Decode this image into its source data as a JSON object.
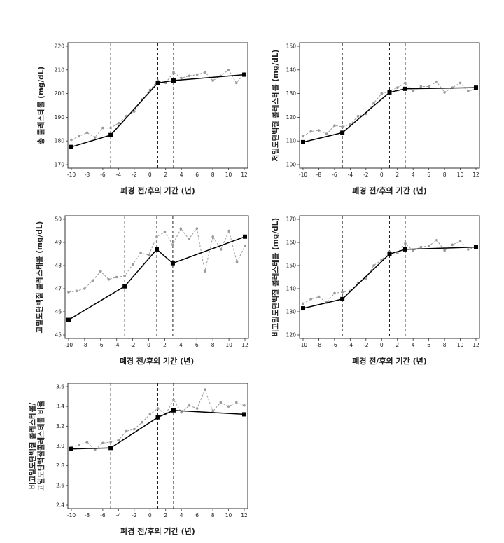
{
  "chart_data": [
    {
      "type": "line",
      "xlabel": "폐경 전/후의 기간 (년)",
      "ylabel": [
        "총 콜레스테롤 (mg/dL)"
      ],
      "xlim": [
        -10,
        12
      ],
      "ylim": [
        170,
        220
      ],
      "xticks": [
        "-10",
        "-8",
        "-6",
        "-4",
        "-2",
        "0",
        "2",
        "4",
        "6",
        "8",
        "10",
        "12"
      ],
      "yticks": [
        "170",
        "180",
        "190",
        "200",
        "210",
        "220"
      ],
      "vlines": [
        -5,
        1,
        3
      ],
      "series": [
        {
          "style": "dashed-observed",
          "color": "#9a9a9a",
          "x": [
            -10,
            -9,
            -8,
            -7,
            -6,
            -5,
            -4,
            -3,
            -2,
            -1,
            0,
            1,
            2,
            3,
            4,
            5,
            6,
            7,
            8,
            9,
            10,
            11,
            12
          ],
          "y": [
            180.5,
            182,
            183.5,
            181.5,
            185.5,
            185.5,
            187.5,
            190.5,
            192.5,
            197.5,
            201.5,
            205.5,
            204.5,
            209,
            206.5,
            207.5,
            208,
            209,
            205.5,
            207.5,
            210,
            204.5,
            208.5
          ]
        },
        {
          "style": "solid-fitted",
          "color": "#000000",
          "x": [
            -10,
            -5,
            1,
            3,
            12
          ],
          "y": [
            177.5,
            182.5,
            204.5,
            205.5,
            208
          ]
        }
      ]
    },
    {
      "type": "line",
      "xlabel": "폐경 전/후의 기간 (년)",
      "ylabel": [
        "저밀도단백질 콜레스테롤 (mg/dL)"
      ],
      "xlim": [
        -10,
        12
      ],
      "ylim": [
        100,
        150
      ],
      "xticks": [
        "-10",
        "-8",
        "-6",
        "-4",
        "-2",
        "0",
        "2",
        "4",
        "6",
        "8",
        "10",
        "12"
      ],
      "yticks": [
        "100",
        "110",
        "120",
        "130",
        "140",
        "150"
      ],
      "vlines": [
        -5,
        1,
        3
      ],
      "series": [
        {
          "style": "dashed-observed",
          "color": "#9a9a9a",
          "x": [
            -10,
            -9,
            -8,
            -7,
            -6,
            -5,
            -4,
            -3,
            -2,
            -1,
            0,
            1,
            2,
            3,
            4,
            5,
            6,
            7,
            8,
            9,
            10,
            11,
            12
          ],
          "y": [
            112,
            114,
            114.5,
            113,
            116.5,
            116,
            117,
            120.5,
            121.5,
            126,
            130,
            131,
            132.5,
            134.5,
            131,
            133,
            133,
            135,
            130.5,
            132.5,
            134.5,
            131,
            132
          ]
        },
        {
          "style": "solid-fitted",
          "color": "#000000",
          "x": [
            -10,
            -5,
            1,
            3,
            12
          ],
          "y": [
            109.5,
            113.5,
            130.5,
            132,
            132.5
          ]
        }
      ]
    },
    {
      "type": "line",
      "xlabel": "폐경 전/후의 기간 (년)",
      "ylabel": [
        "고밀도단백질 콜레스테롤 (mg/dL)"
      ],
      "xlim": [
        -10,
        12
      ],
      "ylim": [
        45,
        50
      ],
      "xticks": [
        "-10",
        "-8",
        "-6",
        "-4",
        "-2",
        "0",
        "2",
        "4",
        "6",
        "8",
        "10",
        "12"
      ],
      "yticks": [
        "45",
        "46",
        "47",
        "48",
        "49",
        "50"
      ],
      "vlines": [
        -3,
        1,
        3
      ],
      "series": [
        {
          "style": "dashed-observed",
          "color": "#9a9a9a",
          "x": [
            -10,
            -9,
            -8,
            -7,
            -6,
            -5,
            -4,
            -3,
            -2,
            -1,
            0,
            1,
            2,
            3,
            4,
            5,
            6,
            7,
            8,
            9,
            10,
            11,
            12
          ],
          "y": [
            46.85,
            46.9,
            47.0,
            47.35,
            47.75,
            47.4,
            47.5,
            47.55,
            48.05,
            48.55,
            48.45,
            49.25,
            49.45,
            48.9,
            49.6,
            49.15,
            49.6,
            47.75,
            49.25,
            48.7,
            49.5,
            48.15,
            48.85
          ]
        },
        {
          "style": "solid-fitted",
          "color": "#000000",
          "x": [
            -10,
            -3,
            1,
            3,
            12
          ],
          "y": [
            45.65,
            47.1,
            48.7,
            48.1,
            49.25
          ]
        }
      ]
    },
    {
      "type": "line",
      "xlabel": "폐경 전/후의 기간 (년)",
      "ylabel": [
        "비고밀도단백질 콜레스테롤 (mg/dL)"
      ],
      "xlim": [
        -10,
        12
      ],
      "ylim": [
        120,
        170
      ],
      "xticks": [
        "-10",
        "-8",
        "-6",
        "-4",
        "-2",
        "0",
        "2",
        "4",
        "6",
        "8",
        "10",
        "12"
      ],
      "yticks": [
        "120",
        "130",
        "140",
        "150",
        "160",
        "170"
      ],
      "vlines": [
        -5,
        1,
        3
      ],
      "series": [
        {
          "style": "dashed-observed",
          "color": "#9a9a9a",
          "x": [
            -10,
            -9,
            -8,
            -7,
            -6,
            -5,
            -4,
            -3,
            -2,
            -1,
            0,
            1,
            2,
            3,
            4,
            5,
            6,
            7,
            8,
            9,
            10,
            11,
            12
          ],
          "y": [
            133.5,
            135.5,
            136.5,
            134,
            138,
            138.5,
            139,
            142.5,
            144.5,
            150,
            152.5,
            156,
            155.5,
            159.5,
            156.5,
            158,
            158.5,
            161,
            156.5,
            159,
            160.5,
            157,
            158
          ]
        },
        {
          "style": "solid-fitted",
          "color": "#000000",
          "x": [
            -10,
            -5,
            1,
            3,
            12
          ],
          "y": [
            131.5,
            135.5,
            155,
            157,
            158
          ]
        }
      ]
    },
    {
      "type": "line",
      "xlabel": "폐경 전/후의 기간 (년)",
      "ylabel": [
        "비고밀도단백질 콜레스테롤/",
        "고밀도단백질콜레스테롤 비율"
      ],
      "xlim": [
        -10,
        12
      ],
      "ylim": [
        2.4,
        3.6
      ],
      "xticks": [
        "-10",
        "-8",
        "-6",
        "-4",
        "-2",
        "0",
        "2",
        "4",
        "6",
        "8",
        "10",
        "12"
      ],
      "yticks": [
        "2.4",
        "2.6",
        "2.8",
        "3.0",
        "3.2",
        "3.4",
        "3.6"
      ],
      "vlines": [
        -5,
        1,
        3
      ],
      "series": [
        {
          "style": "dashed-observed",
          "color": "#9a9a9a",
          "x": [
            -10,
            -9,
            -8,
            -7,
            -6,
            -5,
            -4,
            -3,
            -2,
            -1,
            0,
            1,
            2,
            3,
            4,
            5,
            6,
            7,
            8,
            9,
            10,
            11,
            12
          ],
          "y": [
            2.99,
            3.01,
            3.04,
            2.96,
            3.03,
            3.04,
            3.06,
            3.15,
            3.17,
            3.24,
            3.32,
            3.38,
            3.32,
            3.47,
            3.34,
            3.41,
            3.38,
            3.57,
            3.35,
            3.44,
            3.4,
            3.44,
            3.41
          ]
        },
        {
          "style": "solid-fitted",
          "color": "#000000",
          "x": [
            -10,
            -5,
            1,
            3,
            12
          ],
          "y": [
            2.97,
            2.98,
            3.29,
            3.36,
            3.32
          ]
        }
      ]
    }
  ]
}
